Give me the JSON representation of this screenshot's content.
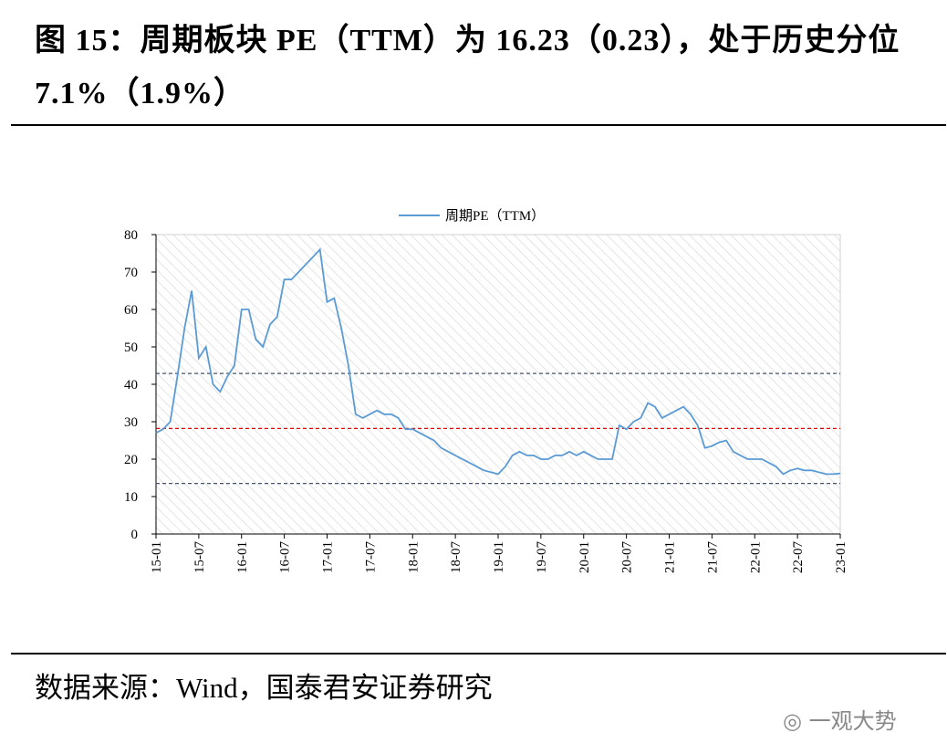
{
  "chart_data": {
    "type": "line",
    "title": "图 15：周期板块 PE（TTM）为 16.23（0.23），处于历史分位 7.1%（1.9%）",
    "source": "数据来源：Wind，国泰君安证券研究",
    "watermark": "一观大势",
    "x": [
      "15-01",
      "15-02",
      "15-03",
      "15-04",
      "15-05",
      "15-06",
      "15-07",
      "15-08",
      "15-09",
      "15-10",
      "15-11",
      "15-12",
      "16-01",
      "16-02",
      "16-03",
      "16-04",
      "16-05",
      "16-06",
      "16-07",
      "16-08",
      "16-09",
      "16-10",
      "16-11",
      "16-12",
      "17-01",
      "17-02",
      "17-03",
      "17-04",
      "17-05",
      "17-06",
      "17-07",
      "17-08",
      "17-09",
      "17-10",
      "17-11",
      "17-12",
      "18-01",
      "18-02",
      "18-03",
      "18-04",
      "18-05",
      "18-06",
      "18-07",
      "18-08",
      "18-09",
      "18-10",
      "18-11",
      "18-12",
      "19-01",
      "19-02",
      "19-03",
      "19-04",
      "19-05",
      "19-06",
      "19-07",
      "19-08",
      "19-09",
      "19-10",
      "19-11",
      "19-12",
      "20-01",
      "20-02",
      "20-03",
      "20-04",
      "20-05",
      "20-06",
      "20-07",
      "20-08",
      "20-09",
      "20-10",
      "20-11",
      "20-12",
      "21-01",
      "21-02",
      "21-03",
      "21-04",
      "21-05",
      "21-06",
      "21-07",
      "21-08",
      "21-09",
      "21-10",
      "21-11",
      "21-12",
      "22-01",
      "22-02",
      "22-03",
      "22-04",
      "22-05",
      "22-06",
      "22-07",
      "22-08",
      "22-09",
      "22-10",
      "22-11",
      "22-12",
      "23-01"
    ],
    "series": [
      {
        "name": "周期PE（TTM）",
        "color": "#5b9bd5",
        "values": [
          27,
          28,
          30,
          42,
          55,
          65,
          47,
          50,
          40,
          38,
          42,
          45,
          60,
          60,
          52,
          50,
          56,
          58,
          68,
          68,
          70,
          72,
          74,
          76,
          62,
          63,
          55,
          45,
          32,
          31,
          32,
          33,
          32,
          32,
          31,
          28,
          28,
          27,
          26,
          25,
          23,
          22,
          21,
          20,
          19,
          18,
          17,
          16.5,
          16,
          18,
          21,
          22,
          21,
          21,
          20,
          20,
          21,
          21,
          22,
          21,
          22,
          21,
          20,
          20,
          20,
          29,
          28,
          30,
          31,
          35,
          34,
          31,
          32,
          33,
          34,
          32,
          29,
          23,
          23.5,
          24.5,
          25,
          22,
          21,
          20,
          20,
          20,
          19,
          18,
          16,
          17,
          17.5,
          17,
          17,
          16.5,
          16,
          16,
          16.2
        ]
      }
    ],
    "reference_lines": [
      {
        "value": 42.9,
        "color": "#44546a"
      },
      {
        "value": 28.2,
        "color": "#e00000"
      },
      {
        "value": 13.5,
        "color": "#44546a"
      }
    ],
    "ylim": [
      0,
      80
    ],
    "yticks": [
      0,
      10,
      20,
      30,
      40,
      50,
      60,
      70,
      80
    ],
    "xticks": [
      "15-01",
      "15-07",
      "16-01",
      "16-07",
      "17-01",
      "17-07",
      "18-01",
      "18-07",
      "19-01",
      "19-07",
      "20-01",
      "20-07",
      "21-01",
      "21-07",
      "22-01",
      "22-07",
      "23-01"
    ],
    "legend": "top"
  }
}
